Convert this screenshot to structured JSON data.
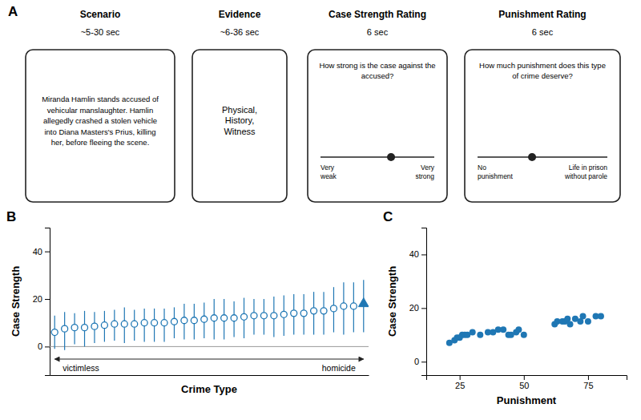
{
  "chart_data": [
    {
      "type": "diagram",
      "panel": "A",
      "boxes": [
        {
          "title": "Scenario",
          "subtitle": "~5-30 sec",
          "body": "Miranda Hamlin stands accused of\nvehicular manslaughter. Hamlin\nallegedly crashed a stolen vehicle\ninto Diana Masters's Prius, killing\nher, before fleeing the scene."
        },
        {
          "title": "Evidence",
          "subtitle": "~6-36 sec",
          "body": "Physical,\nHistory,\nWitness"
        },
        {
          "title": "Case Strength Rating",
          "subtitle": "6 sec",
          "body": "How strong is the case against the\naccused?",
          "scale_left": "Very\nweak",
          "scale_right": "Very\nstrong",
          "dot": 0.62
        },
        {
          "title": "Punishment Rating",
          "subtitle": "6 sec",
          "body": "How much punishment does this type\nof crime deserve?",
          "scale_left": "No\npunishment",
          "scale_right": "Life in prison\nwithout parole",
          "dot": 0.42
        }
      ]
    },
    {
      "type": "errorbar",
      "panel": "B",
      "categories": [
        null,
        null,
        null,
        null,
        null,
        null,
        null,
        null,
        null,
        null,
        null,
        null,
        null,
        null,
        null,
        null,
        null,
        null,
        null,
        null,
        null,
        null,
        null,
        null,
        null,
        null,
        null,
        null,
        null,
        null,
        null,
        null
      ],
      "series": [
        {
          "marker": "circle-open",
          "values": [
            6,
            7.5,
            8,
            8,
            8.5,
            9,
            9.5,
            9.5,
            9.5,
            10,
            10,
            10,
            10.5,
            11,
            11,
            11.5,
            12,
            12,
            12,
            12.5,
            13,
            13,
            13,
            13.5,
            14,
            14,
            15,
            15,
            16,
            17,
            17,
            null
          ],
          "errors_low": [
            7,
            9,
            7,
            8,
            7,
            7,
            7,
            8,
            7,
            8,
            8,
            8,
            7,
            8,
            8,
            8,
            9,
            9,
            8,
            9,
            8,
            8,
            9,
            9,
            9,
            9,
            10,
            10,
            10,
            12,
            11,
            null
          ],
          "errors_high": [
            7,
            7,
            6,
            7,
            6,
            6,
            6,
            7,
            6,
            6,
            6,
            6,
            6,
            7,
            7,
            7,
            8,
            8,
            7,
            8,
            7,
            7,
            8,
            8,
            8,
            8,
            8,
            8,
            9,
            10,
            10,
            null
          ]
        },
        {
          "marker": "triangle",
          "values": [
            null,
            null,
            null,
            null,
            null,
            null,
            null,
            null,
            null,
            null,
            null,
            null,
            null,
            null,
            null,
            null,
            null,
            null,
            null,
            null,
            null,
            null,
            null,
            null,
            null,
            null,
            null,
            null,
            null,
            null,
            null,
            18
          ],
          "errors_low": [
            null,
            null,
            null,
            null,
            null,
            null,
            null,
            null,
            null,
            null,
            null,
            null,
            null,
            null,
            null,
            null,
            null,
            null,
            null,
            null,
            null,
            null,
            null,
            null,
            null,
            null,
            null,
            null,
            null,
            null,
            null,
            12
          ],
          "errors_high": [
            null,
            null,
            null,
            null,
            null,
            null,
            null,
            null,
            null,
            null,
            null,
            null,
            null,
            null,
            null,
            null,
            null,
            null,
            null,
            null,
            null,
            null,
            null,
            null,
            null,
            null,
            null,
            null,
            null,
            null,
            null,
            10
          ]
        }
      ],
      "xlabel": "Crime Type",
      "ylabel": "Case Strength",
      "ylim": [
        -12,
        50
      ],
      "yticks": [
        0,
        20,
        40
      ],
      "reference_line": 0,
      "annotations": [
        "victimless",
        "homicide"
      ]
    },
    {
      "type": "scatter",
      "panel": "C",
      "x": [
        21,
        23,
        24,
        25,
        26,
        27,
        28,
        30,
        33,
        36,
        38,
        40,
        42,
        44,
        45,
        47,
        48,
        50,
        62,
        63,
        65,
        66,
        67,
        68,
        70,
        72,
        73,
        75,
        78,
        80
      ],
      "y": [
        7,
        8,
        9,
        9,
        10,
        10,
        10,
        11,
        10,
        11,
        11,
        12,
        12,
        10,
        10,
        11,
        12,
        10,
        14,
        15,
        15,
        15,
        16,
        14,
        16,
        15,
        17,
        15,
        17,
        17
      ],
      "xlabel": "Punishment",
      "ylabel": "Case Strength",
      "xlim": [
        12,
        90
      ],
      "ylim": [
        -5,
        50
      ],
      "xticks": [
        25,
        50,
        75
      ],
      "yticks": [
        0,
        20,
        40
      ]
    }
  ]
}
